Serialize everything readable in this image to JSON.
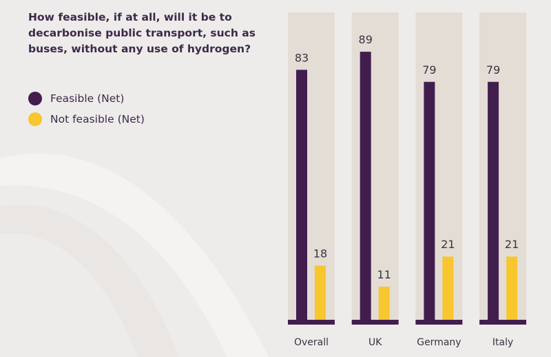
{
  "chart_data": {
    "type": "bar",
    "title": "How feasible, if at all, will it be to decarbonise public transport, such as buses, without any use of hydrogen?",
    "categories": [
      "Overall",
      "UK",
      "Germany",
      "Italy"
    ],
    "series": [
      {
        "name": "Feasible (Net)",
        "color": "#421e4f",
        "values": [
          83,
          89,
          79,
          79
        ]
      },
      {
        "name": "Not feasible (Net)",
        "color": "#f8c62f",
        "values": [
          18,
          11,
          21,
          21
        ]
      }
    ],
    "ylim": [
      0,
      100
    ],
    "grid": false,
    "legend": "top-left",
    "panel_color": "#e4ddd5",
    "baseline_color": "#421e4f"
  }
}
